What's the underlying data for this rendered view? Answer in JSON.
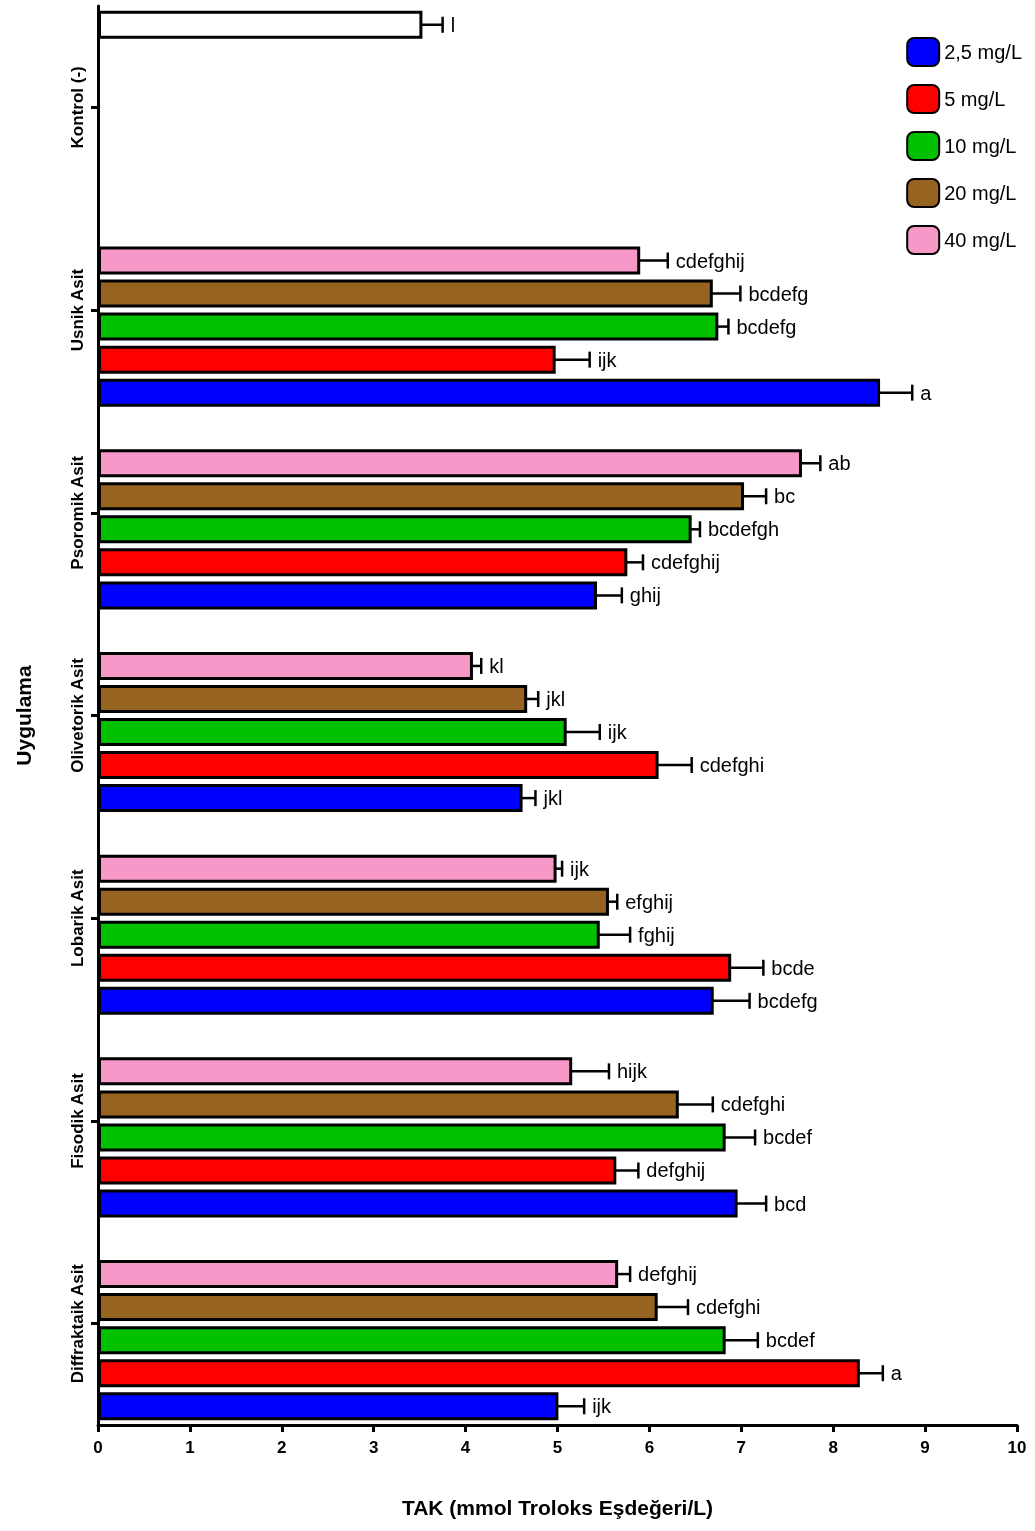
{
  "chart_data": {
    "type": "bar",
    "orientation": "horizontal",
    "xlabel": "TAK (mmol Troloks Eşdeğeri/L)",
    "ylabel": "Uygulama",
    "categories": [
      "Kontrol (-)",
      "Usnik Asit",
      "Psoromik Asit",
      "Olivetorik Asit",
      "Lobarik Asit",
      "Fisodik Asit",
      "Diffraktaik Asit"
    ],
    "xlim": [
      0,
      10
    ],
    "xticks": [
      0,
      1,
      2,
      3,
      4,
      5,
      6,
      7,
      8,
      9,
      10
    ],
    "grid": false,
    "legend": "top right",
    "series": [
      {
        "name": "2,5 mg/L",
        "color": "#0000ff",
        "values": [
          null,
          8.51,
          5.43,
          4.62,
          6.7,
          6.96,
          5.01
        ],
        "errors": [
          null,
          0.35,
          0.27,
          0.14,
          0.39,
          0.31,
          0.28
        ],
        "value_labels": [
          null,
          "a",
          "ghij",
          "jkl",
          "bcdefg",
          "bcd",
          "ijk"
        ]
      },
      {
        "name": "5 mg/L",
        "color": "#ff0000",
        "values": [
          null,
          4.98,
          5.76,
          6.1,
          6.89,
          5.64,
          8.29
        ],
        "errors": [
          null,
          0.37,
          0.17,
          0.36,
          0.35,
          0.24,
          0.25
        ],
        "value_labels": [
          null,
          "ijk",
          "cdefghij",
          "cdefghi",
          "bcde",
          "defghij",
          "a"
        ]
      },
      {
        "name": "10 mg/L",
        "color": "#00c000",
        "values": [
          null,
          6.75,
          6.46,
          5.1,
          5.46,
          6.83,
          6.83
        ],
        "errors": [
          null,
          0.11,
          0.09,
          0.36,
          0.33,
          0.32,
          0.35
        ],
        "value_labels": [
          null,
          "bcdefg",
          "bcdefgh",
          "ijk",
          "fghij",
          "bcdef",
          "bcdef"
        ]
      },
      {
        "name": "20 mg/L",
        "color": "#966420",
        "values": [
          null,
          6.69,
          7.03,
          4.67,
          5.56,
          6.32,
          6.09
        ],
        "errors": [
          null,
          0.3,
          0.24,
          0.12,
          0.09,
          0.37,
          0.33
        ],
        "value_labels": [
          null,
          "bcdefg",
          "bc",
          "jkl",
          "efghij",
          "cdefghi",
          "cdefghi"
        ]
      },
      {
        "name": "40 mg/L",
        "color": "#f799c8",
        "values": [
          null,
          5.9,
          7.66,
          4.08,
          4.99,
          5.16,
          5.66
        ],
        "errors": [
          null,
          0.3,
          0.2,
          0.09,
          0.06,
          0.4,
          0.13
        ],
        "value_labels": [
          null,
          "cdefghij",
          "ab",
          "kl",
          "ijk",
          "hijk",
          "defghij"
        ]
      },
      {
        "color": "#ffffff",
        "values": [
          3.53,
          null,
          null,
          null,
          null,
          null,
          null
        ],
        "errors": [
          0.22,
          null,
          null,
          null,
          null,
          null,
          null
        ],
        "value_labels": [
          "l",
          null,
          null,
          null,
          null,
          null,
          null
        ]
      }
    ]
  }
}
